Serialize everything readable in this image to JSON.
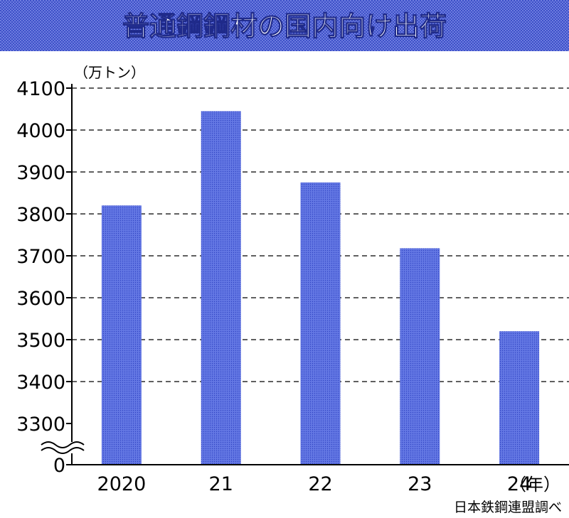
{
  "title": "普通鋼鋼材の国内向け出荷",
  "unit_label": "（万トン）",
  "x_unit": "（年）",
  "source": "日本鉄鋼連盟調べ",
  "colors": {
    "title_bg": "#3d50c8",
    "title_text": "#ffffff",
    "bar": "#5a6ee0",
    "bar_dot": "#3145c4",
    "grid": "#000000"
  },
  "chart_data": {
    "type": "bar",
    "categories": [
      "2020",
      "21",
      "22",
      "23",
      "24"
    ],
    "values": [
      3820,
      4045,
      3875,
      3718,
      3520
    ],
    "ylim": [
      3300,
      4100
    ],
    "yticks": [
      "4100",
      "4000",
      "3900",
      "3800",
      "3700",
      "3600",
      "3500",
      "3400",
      "3300",
      "0"
    ],
    "axis_break": true,
    "grid": true,
    "ylabel": "（万トン）",
    "xlabel": "（年）"
  }
}
